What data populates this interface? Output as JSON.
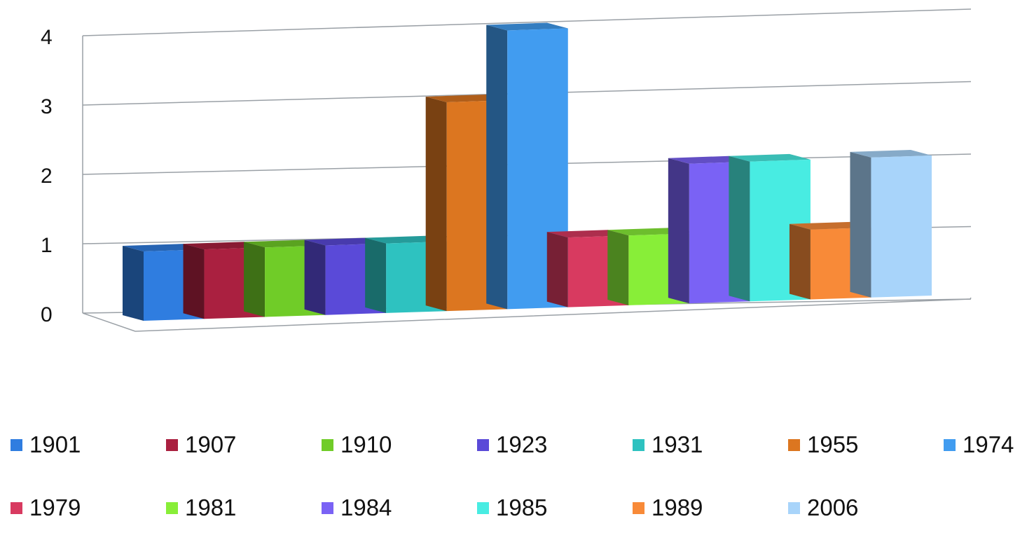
{
  "chart_data": {
    "type": "bar",
    "title": "",
    "xlabel": "",
    "ylabel": "",
    "ylim": [
      0,
      4
    ],
    "y_ticks": [
      "0",
      "1",
      "2",
      "3",
      "4"
    ],
    "grid": true,
    "three_d": true,
    "legend_position": "bottom",
    "categories": [
      "1901",
      "1907",
      "1910",
      "1923",
      "1931",
      "1955",
      "1974",
      "1979",
      "1981",
      "1984",
      "1985",
      "1989",
      "2006"
    ],
    "values": [
      1,
      1,
      1,
      1,
      1,
      3,
      4,
      1,
      1,
      2,
      2,
      1,
      2
    ],
    "colors": [
      "#2f7de0",
      "#aa2040",
      "#70cc28",
      "#5a4ad8",
      "#2ec2c0",
      "#dc7620",
      "#419cf0",
      "#d83a60",
      "#88ee38",
      "#7a62f5",
      "#48ece2",
      "#f88a38",
      "#a8d4fa"
    ]
  }
}
